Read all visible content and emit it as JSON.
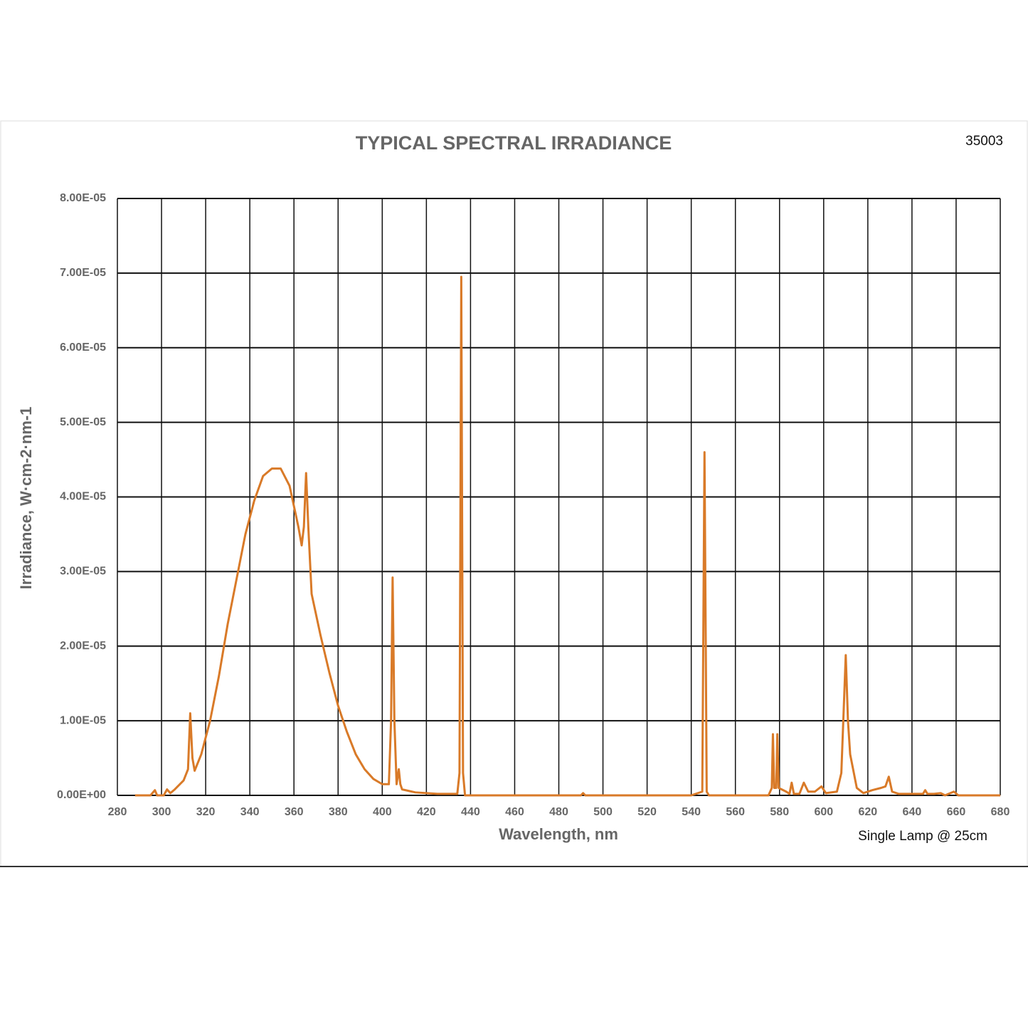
{
  "chart_data": {
    "type": "line",
    "title": "TYPICAL SPECTRAL IRRADIANCE",
    "figure_id": "35003",
    "annotation": "Single Lamp @ 25cm",
    "xlabel": "Wavelength, nm",
    "ylabel": "Irradiance, W·cm-2·nm-1",
    "color": "#d97a28",
    "grid": true,
    "xlim": [
      280,
      680
    ],
    "xticks": [
      280,
      300,
      320,
      340,
      360,
      380,
      400,
      420,
      440,
      460,
      480,
      500,
      520,
      540,
      560,
      580,
      600,
      620,
      640,
      660,
      680
    ],
    "ylim": [
      0,
      8e-05
    ],
    "yticks": [
      {
        "value": 0,
        "label": "0.00E+00"
      },
      {
        "value": 1e-05,
        "label": "1.00E-05"
      },
      {
        "value": 2e-05,
        "label": "2.00E-05"
      },
      {
        "value": 3e-05,
        "label": "3.00E-05"
      },
      {
        "value": 4e-05,
        "label": "4.00E-05"
      },
      {
        "value": 5e-05,
        "label": "5.00E-05"
      },
      {
        "value": 6e-05,
        "label": "6.00E-05"
      },
      {
        "value": 7e-05,
        "label": "7.00E-05"
      },
      {
        "value": 8e-05,
        "label": "8.00E-05"
      }
    ],
    "x": [
      288,
      295,
      297,
      298,
      301,
      302.5,
      304,
      306,
      310,
      312,
      313,
      314,
      315,
      318,
      322,
      326,
      330,
      334,
      338,
      342,
      346,
      350,
      354,
      358,
      362,
      363.5,
      364.5,
      365.5,
      366.5,
      368,
      372,
      376,
      380,
      384,
      388,
      392,
      396,
      400,
      403,
      404,
      404.7,
      405.5,
      406.5,
      407.5,
      408.2,
      409,
      415,
      425,
      434,
      435,
      435.8,
      436.6,
      437.5,
      490,
      491,
      492,
      540,
      545,
      546,
      547,
      548,
      575,
      576.5,
      577,
      577.6,
      578.5,
      579,
      579.6,
      583,
      584.5,
      585.5,
      586.5,
      589,
      591,
      593,
      596,
      599,
      601,
      606,
      608,
      610,
      611,
      612,
      613,
      615,
      618,
      622,
      626,
      628,
      629.5,
      631,
      634,
      640,
      645,
      646,
      647,
      650,
      653,
      655,
      659,
      661,
      680
    ],
    "values": [
      0,
      0,
      7e-07,
      0,
      0,
      8e-07,
      3e-07,
      8e-07,
      2e-06,
      3.5e-06,
      1.1e-05,
      5e-06,
      3.3e-06,
      5.5e-06,
      1e-05,
      1.6e-05,
      2.3e-05,
      2.9e-05,
      3.5e-05,
      3.95e-05,
      4.28e-05,
      4.38e-05,
      4.38e-05,
      4.15e-05,
      3.6e-05,
      3.35e-05,
      3.6e-05,
      4.32e-05,
      3.6e-05,
      2.7e-05,
      2.15e-05,
      1.65e-05,
      1.2e-05,
      8.5e-06,
      5.5e-06,
      3.5e-06,
      2.2e-06,
      1.5e-06,
      1.5e-06,
      1e-05,
      2.92e-05,
      1e-05,
      1.5e-06,
      3.5e-06,
      1.5e-06,
      8e-07,
      4e-07,
      2e-07,
      2e-07,
      3e-06,
      6.95e-05,
      3e-06,
      0,
      0,
      3e-07,
      0,
      0,
      5e-07,
      4.6e-05,
      5e-07,
      0,
      0,
      1e-06,
      8.2e-06,
      1e-06,
      1e-06,
      8.2e-06,
      1e-06,
      5e-07,
      2e-07,
      1.7e-06,
      2e-07,
      2e-07,
      1.7e-06,
      5e-07,
      5e-07,
      1.2e-06,
      3e-07,
      5e-07,
      3e-06,
      1.88e-05,
      1e-05,
      5.5e-06,
      4e-06,
      1e-06,
      3e-07,
      7e-07,
      1e-06,
      1.2e-06,
      2.5e-06,
      5e-07,
      2e-07,
      2e-07,
      2e-07,
      7e-07,
      2e-07,
      2e-07,
      3e-07,
      0,
      5e-07,
      0,
      0
    ]
  }
}
